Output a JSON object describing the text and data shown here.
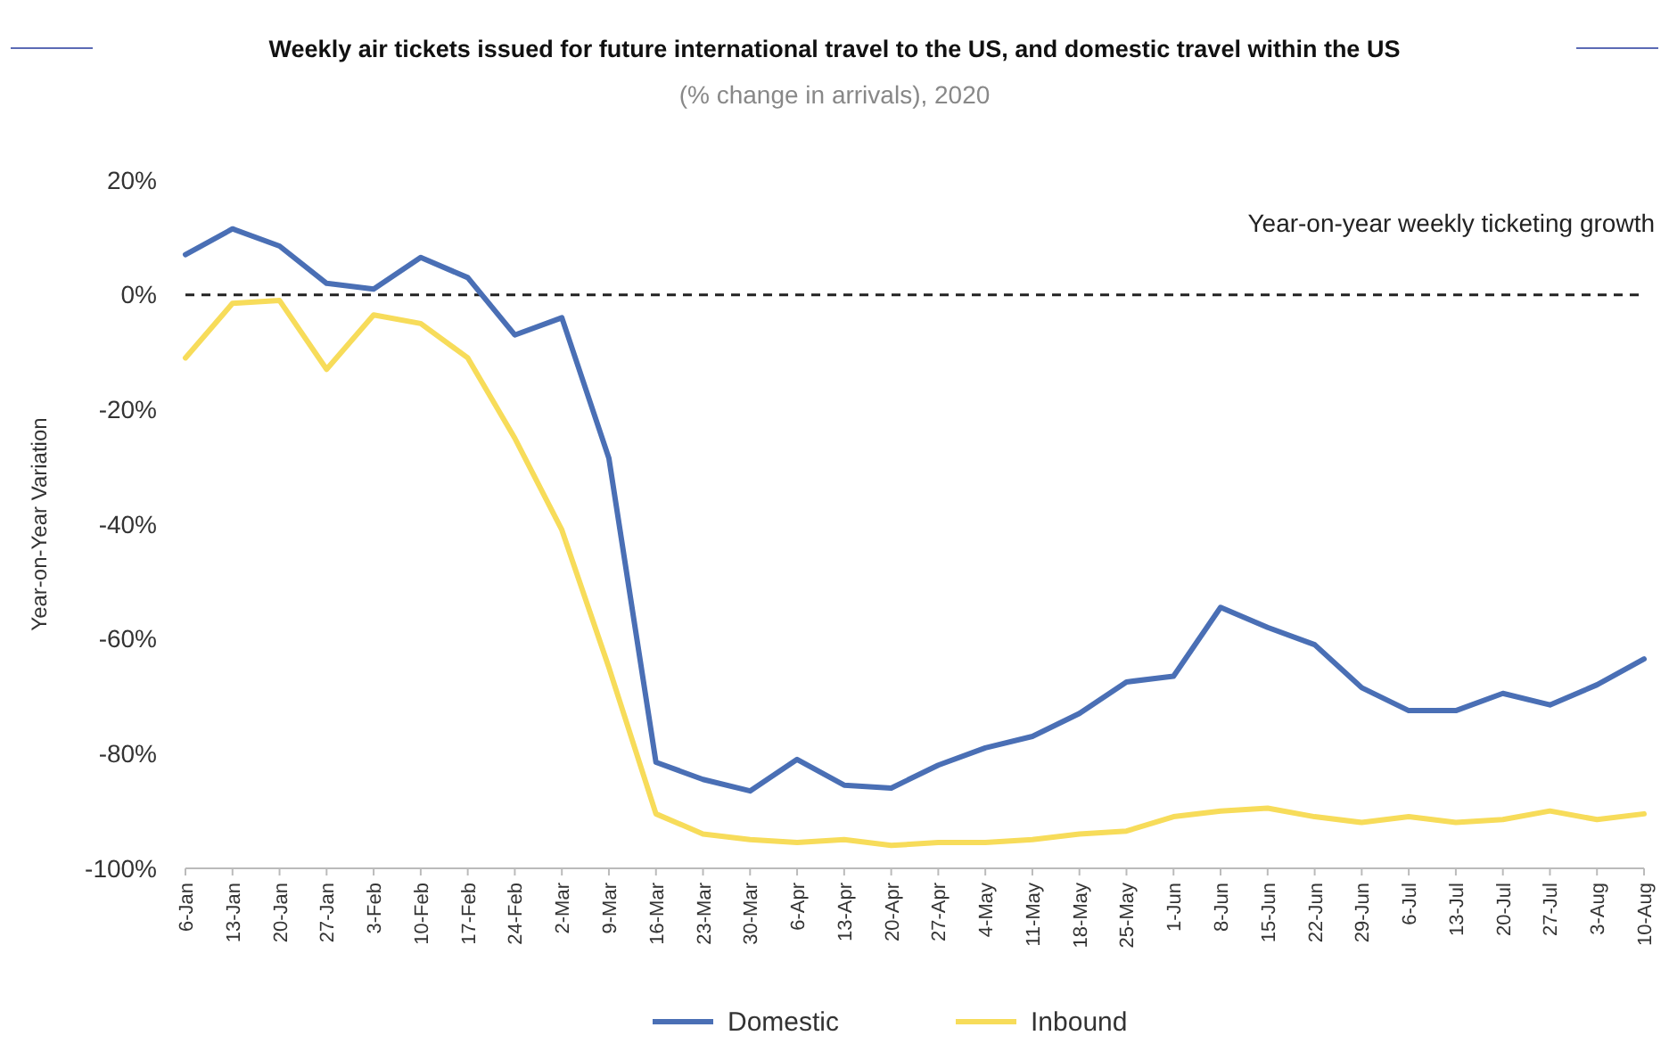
{
  "chart_data": {
    "type": "line",
    "title": "Weekly air tickets issued for future international travel to the US, and domestic travel within the US",
    "subtitle": "(% change in arrivals), 2020",
    "ylabel": "Year-on-Year Variation",
    "annotations": [
      "Year-on-year weekly ticketing growth"
    ],
    "categories": [
      "6-Jan",
      "13-Jan",
      "20-Jan",
      "27-Jan",
      "3-Feb",
      "10-Feb",
      "17-Feb",
      "24-Feb",
      "2-Mar",
      "9-Mar",
      "16-Mar",
      "23-Mar",
      "30-Mar",
      "6-Apr",
      "13-Apr",
      "20-Apr",
      "27-Apr",
      "4-May",
      "11-May",
      "18-May",
      "25-May",
      "1-Jun",
      "8-Jun",
      "15-Jun",
      "22-Jun",
      "29-Jun",
      "6-Jul",
      "13-Jul",
      "20-Jul",
      "27-Jul",
      "3-Aug",
      "10-Aug"
    ],
    "series": [
      {
        "name": "Domestic",
        "color": "#4a6fb5",
        "values": [
          7,
          11.5,
          8.5,
          2,
          1,
          6.5,
          3,
          -7,
          -4,
          -28.5,
          -81.5,
          -84.5,
          -86.5,
          -81,
          -85.5,
          -86,
          -82,
          -79,
          -77,
          -73,
          -67.5,
          -66.5,
          -54.5,
          -58,
          -61,
          -68.5,
          -72.5,
          -72.5,
          -69.5,
          -71.5,
          -68,
          -63.5
        ]
      },
      {
        "name": "Inbound",
        "color": "#f7dc5a",
        "values": [
          -11,
          -1.5,
          -1,
          -13,
          -3.5,
          -5,
          -11,
          -25,
          -41,
          -65,
          -90.5,
          -94,
          -95,
          -95.5,
          -95,
          -96,
          -95.5,
          -95.5,
          -95,
          -94,
          -93.5,
          -91,
          -90,
          -89.5,
          -91,
          -92,
          -91,
          -92,
          -91.5,
          -90,
          -91.5,
          -90.5
        ]
      }
    ],
    "ylim": [
      -100,
      20
    ],
    "yticks": [
      {
        "value": -100,
        "label": "-100%"
      },
      {
        "value": -80,
        "label": "-80%"
      },
      {
        "value": -60,
        "label": "-60%"
      },
      {
        "value": -40,
        "label": "-40%"
      },
      {
        "value": -20,
        "label": "-20%"
      },
      {
        "value": 0,
        "label": "0%"
      },
      {
        "value": 20,
        "label": "20%"
      }
    ],
    "ref_lines": [
      {
        "axis": "y",
        "value": 0,
        "label": null,
        "color": "#222222",
        "line_style": "dashed"
      }
    ],
    "legend": "bottom",
    "grid": false,
    "marker": "none",
    "line_style": "solid"
  }
}
